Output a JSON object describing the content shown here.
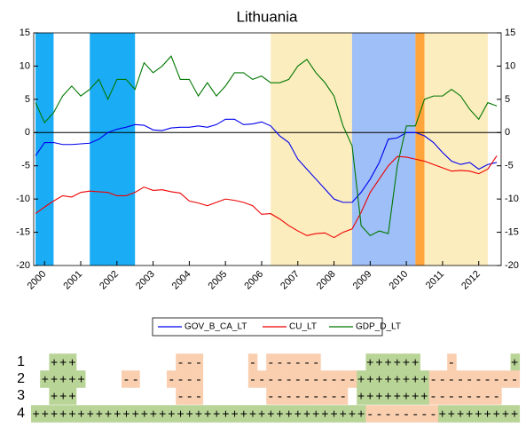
{
  "chart_data": {
    "type": "line",
    "title": "Lithuania",
    "x": [
      1999.75,
      2000,
      2000.25,
      2000.5,
      2000.75,
      2001,
      2001.25,
      2001.5,
      2001.75,
      2002,
      2002.25,
      2002.5,
      2002.75,
      2003,
      2003.25,
      2003.5,
      2003.75,
      2004,
      2004.25,
      2004.5,
      2004.75,
      2005,
      2005.25,
      2005.5,
      2005.75,
      2006,
      2006.25,
      2006.5,
      2006.75,
      2007,
      2007.25,
      2007.5,
      2007.75,
      2008,
      2008.25,
      2008.5,
      2008.75,
      2009,
      2009.25,
      2009.5,
      2009.75,
      2010,
      2010.25,
      2010.5,
      2010.75,
      2011,
      2011.25,
      2011.5,
      2011.75,
      2012,
      2012.25,
      2012.5
    ],
    "series": [
      {
        "name": "GOV_B_CA_LT",
        "color": "#0000ee",
        "values": [
          -3.5,
          -1.5,
          -1.5,
          -1.8,
          -1.8,
          -1.7,
          -1.6,
          -1,
          0,
          0.5,
          0.8,
          1.2,
          1.1,
          0.4,
          0.3,
          0.7,
          0.8,
          0.8,
          1,
          0.8,
          1.2,
          2,
          2,
          1.2,
          1.3,
          1.6,
          1,
          -0.5,
          -1.5,
          -4,
          -5.5,
          -7,
          -8.5,
          -10,
          -10.5,
          -10.5,
          -9,
          -7,
          -4.5,
          -1,
          -0.8,
          0,
          0,
          -0.5,
          -1.5,
          -3,
          -4.3,
          -4.8,
          -4.5,
          -5.5,
          -4.8,
          -4.5
        ]
      },
      {
        "name": "CU_LT",
        "color": "#ee0000",
        "values": [
          -12.2,
          -11.2,
          -10.3,
          -9.5,
          -9.7,
          -9,
          -8.8,
          -8.9,
          -9,
          -9.5,
          -9.5,
          -9,
          -8.2,
          -8.7,
          -8.6,
          -8.9,
          -9.1,
          -10.3,
          -10.6,
          -11,
          -10.5,
          -10,
          -10.2,
          -10.5,
          -11,
          -12.3,
          -12.2,
          -13,
          -14,
          -14.8,
          -15.5,
          -15.2,
          -15.1,
          -15.8,
          -15,
          -14.5,
          -12,
          -9,
          -7,
          -5,
          -3.6,
          -3.7,
          -4,
          -4.3,
          -4.8,
          -5.3,
          -5.8,
          -5.7,
          -5.8,
          -6.2,
          -5.5,
          -3.5
        ]
      },
      {
        "name": "GDP_D_LT",
        "color": "#007700",
        "values": [
          4.5,
          1.5,
          3,
          5.5,
          7,
          5.5,
          6.5,
          8,
          5,
          8,
          8,
          6.5,
          10.5,
          9,
          10,
          11.5,
          8,
          8,
          5.5,
          7.5,
          5.5,
          7,
          9,
          9,
          8,
          8.5,
          7.5,
          7.5,
          8,
          10,
          11,
          9,
          7.5,
          5.5,
          1,
          -2,
          -14,
          -15.5,
          -14.8,
          -15.2,
          -5,
          1,
          1,
          5,
          5.5,
          5.5,
          6.5,
          5.5,
          3.5,
          2,
          4.5,
          4
        ]
      }
    ],
    "xlim": [
      1999.7,
      2012.62
    ],
    "xticks": [
      2000,
      2001,
      2002,
      2003,
      2004,
      2005,
      2006,
      2007,
      2008,
      2009,
      2010,
      2011,
      2012
    ],
    "ylim": [
      -20,
      15
    ],
    "yticks": [
      15,
      10,
      5,
      0,
      -5,
      -10,
      -15,
      -20
    ],
    "y2lim": [
      -20,
      15
    ],
    "y2ticks": [
      15,
      10,
      5,
      0,
      -5,
      -10,
      -15,
      -20
    ],
    "shaded_regions": [
      {
        "start": 1999.75,
        "end": 2000.25,
        "color": "#1aadf5"
      },
      {
        "start": 2001.25,
        "end": 2002.5,
        "color": "#1aadf5"
      },
      {
        "start": 2006.25,
        "end": 2008.5,
        "color": "#fcedbf"
      },
      {
        "start": 2008.5,
        "end": 2010.25,
        "color": "#9ebff7"
      },
      {
        "start": 2010.25,
        "end": 2010.5,
        "color": "#ffa53c"
      },
      {
        "start": 2010.5,
        "end": 2012.25,
        "color": "#fcedbf"
      }
    ]
  },
  "sign_table": {
    "plus_color": "#b8d496",
    "minus_color": "#f9cfb0",
    "rows": [
      {
        "label": "1",
        "signs": "  +++           ---     - ------     ++++++   -      +"
      },
      {
        "label": "2",
        "signs": " +++++    --   ----     ------------++++++++---------- "
      },
      {
        "label": "3",
        "signs": "  +++           ---       --------- ++++++++--------  "
      },
      {
        "label": "4",
        "signs": "+++++++++++++++++++++++++++++++++++++--------+++++++++"
      }
    ]
  }
}
